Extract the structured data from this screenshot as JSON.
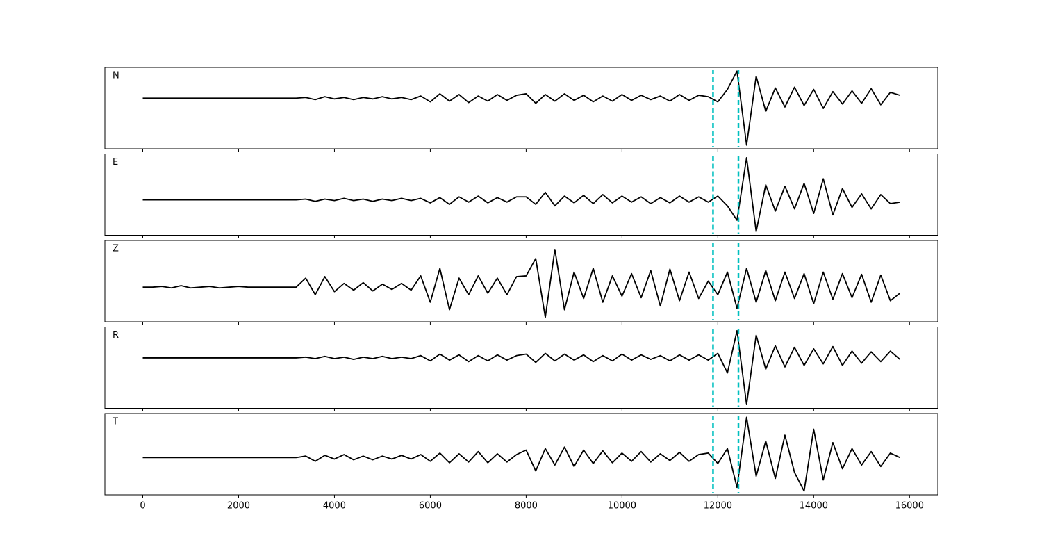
{
  "chart_data": {
    "type": "line",
    "x": [
      0,
      200,
      400,
      600,
      800,
      1000,
      1200,
      1400,
      1600,
      1800,
      2000,
      2200,
      2400,
      2600,
      2800,
      3000,
      3200,
      3400,
      3600,
      3800,
      4000,
      4200,
      4400,
      4600,
      4800,
      5000,
      5200,
      5400,
      5600,
      5800,
      6000,
      6200,
      6400,
      6600,
      6800,
      7000,
      7200,
      7400,
      7600,
      7800,
      8000,
      8200,
      8400,
      8600,
      8800,
      9000,
      9200,
      9400,
      9600,
      9800,
      10000,
      10200,
      10400,
      10600,
      10800,
      11000,
      11200,
      11400,
      11600,
      11800,
      12000,
      12200,
      12400,
      12600,
      12800,
      13000,
      13200,
      13400,
      13600,
      13800,
      14000,
      14200,
      14400,
      14600,
      14800,
      15000,
      15200,
      15400,
      15600,
      15800
    ],
    "xlim": [
      -790,
      16590
    ],
    "xticks": [
      0,
      2000,
      4000,
      6000,
      8000,
      10000,
      12000,
      14000,
      16000
    ],
    "vlines": [
      11900,
      12430
    ],
    "vline_color": "#00bfbf",
    "series": [
      {
        "name": "N",
        "color": "#000000",
        "ylim": [
          -69,
          42
        ],
        "values": [
          0,
          0,
          0,
          0,
          0,
          0,
          0,
          0,
          0,
          0,
          0,
          0,
          0,
          0,
          0,
          0,
          0,
          1,
          -2,
          2,
          -1,
          1,
          -2,
          1,
          -1,
          2,
          -1,
          1,
          -2,
          3,
          -5,
          6,
          -4,
          5,
          -6,
          3,
          -4,
          5,
          -3,
          4,
          6,
          -7,
          5,
          -4,
          6,
          -3,
          4,
          -5,
          3,
          -4,
          5,
          -3,
          4,
          -2,
          3,
          -4,
          5,
          -3,
          4,
          2,
          -5,
          12,
          37,
          -64,
          30,
          -18,
          14,
          -12,
          15,
          -10,
          12,
          -14,
          9,
          -8,
          10,
          -7,
          13,
          -9,
          8,
          4
        ]
      },
      {
        "name": "E",
        "color": "#000000",
        "ylim": [
          -47,
          61
        ],
        "values": [
          0,
          0,
          0,
          0,
          0,
          0,
          0,
          0,
          0,
          0,
          0,
          0,
          0,
          0,
          0,
          0,
          0,
          1,
          -2,
          1,
          -1,
          2,
          -1,
          1,
          -2,
          1,
          -1,
          2,
          -1,
          2,
          -4,
          3,
          -6,
          4,
          -3,
          5,
          -4,
          3,
          -3,
          4,
          4,
          -6,
          10,
          -8,
          5,
          -4,
          6,
          -5,
          7,
          -4,
          5,
          -3,
          4,
          -5,
          3,
          -4,
          5,
          -3,
          4,
          -3,
          5,
          -8,
          -27,
          56,
          -42,
          20,
          -15,
          18,
          -12,
          22,
          -18,
          28,
          -20,
          15,
          -10,
          8,
          -12,
          7,
          -5,
          -3
        ]
      },
      {
        "name": "Z",
        "color": "#000000",
        "ylim": [
          -46,
          62
        ],
        "values": [
          0,
          0,
          1,
          -1,
          2,
          -1,
          0,
          1,
          -1,
          0,
          1,
          0,
          0,
          0,
          0,
          0,
          0,
          12,
          -10,
          14,
          -6,
          5,
          -4,
          6,
          -5,
          4,
          -3,
          5,
          -4,
          15,
          -20,
          25,
          -30,
          12,
          -10,
          15,
          -8,
          12,
          -10,
          14,
          15,
          38,
          -40,
          50,
          -30,
          20,
          -15,
          25,
          -20,
          15,
          -12,
          18,
          -14,
          22,
          -25,
          24,
          -18,
          20,
          -15,
          8,
          -10,
          20,
          -28,
          25,
          -20,
          22,
          -18,
          20,
          -15,
          18,
          -22,
          20,
          -16,
          18,
          -14,
          17,
          -20,
          16,
          -18,
          -8
        ]
      },
      {
        "name": "R",
        "color": "#000000",
        "ylim": [
          -67,
          41
        ],
        "values": [
          0,
          0,
          0,
          0,
          0,
          0,
          0,
          0,
          0,
          0,
          0,
          0,
          0,
          0,
          0,
          0,
          0,
          1,
          -1,
          2,
          -1,
          1,
          -2,
          1,
          -1,
          2,
          -1,
          1,
          -1,
          3,
          -4,
          5,
          -3,
          4,
          -5,
          3,
          -4,
          4,
          -3,
          3,
          5,
          -6,
          6,
          -4,
          5,
          -3,
          4,
          -5,
          3,
          -4,
          5,
          -3,
          4,
          -2,
          3,
          -4,
          4,
          -3,
          4,
          -3,
          6,
          -20,
          36,
          -62,
          30,
          -15,
          16,
          -12,
          14,
          -10,
          12,
          -8,
          15,
          -10,
          9,
          -7,
          8,
          -5,
          9,
          -2
        ]
      },
      {
        "name": "T",
        "color": "#000000",
        "ylim": [
          -50,
          59
        ],
        "values": [
          0,
          0,
          0,
          0,
          0,
          0,
          0,
          0,
          0,
          0,
          0,
          0,
          0,
          0,
          0,
          0,
          0,
          2,
          -5,
          3,
          -2,
          4,
          -3,
          2,
          -3,
          2,
          -2,
          3,
          -2,
          4,
          -5,
          6,
          -7,
          5,
          -6,
          8,
          -7,
          5,
          -6,
          4,
          10,
          -18,
          12,
          -10,
          14,
          -12,
          10,
          -8,
          9,
          -7,
          6,
          -5,
          8,
          -6,
          5,
          -4,
          7,
          -5,
          4,
          6,
          -8,
          12,
          -40,
          54,
          -25,
          22,
          -28,
          30,
          -20,
          -45,
          38,
          -30,
          20,
          -15,
          12,
          -10,
          8,
          -12,
          6,
          0
        ]
      }
    ]
  }
}
